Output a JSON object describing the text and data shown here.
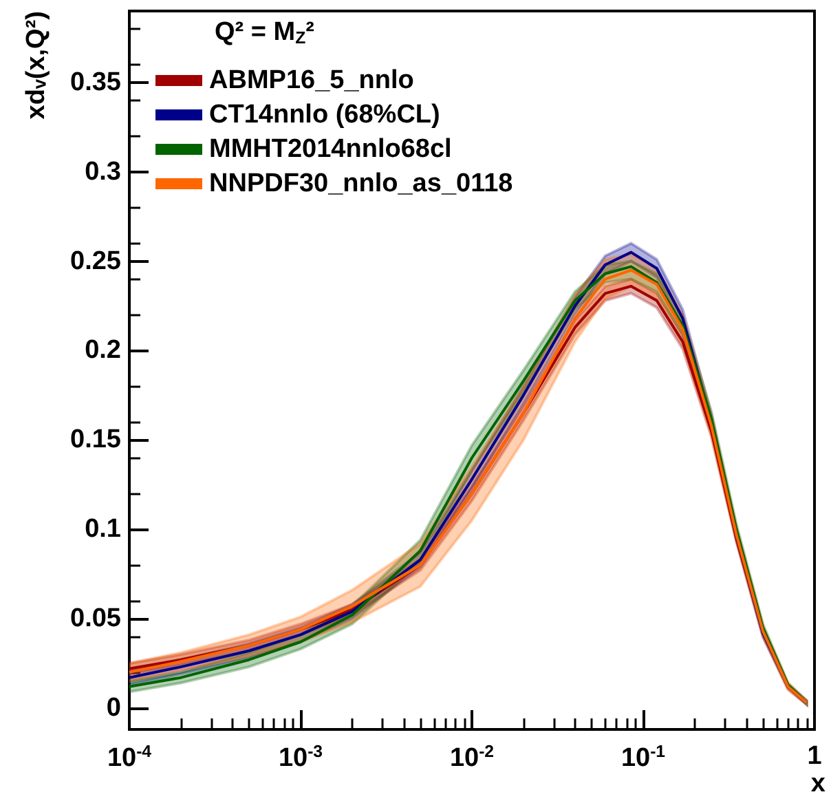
{
  "chart_data": {
    "type": "line",
    "xlabel": "x",
    "ylabel": "xdᵥ(x,Q²)",
    "legend_title": "Q² = M$_{Z}$²",
    "log": "x",
    "xlim": [
      0.0001,
      1
    ],
    "xticks": [
      {
        "value": 0.0001,
        "label": "10$^{-4}$"
      },
      {
        "value": 0.001,
        "label": "10$^{-3}$"
      },
      {
        "value": 0.01,
        "label": "10$^{-2}$"
      },
      {
        "value": 0.1,
        "label": "10$^{-1}$"
      },
      1
    ],
    "ylim": [
      -0.012,
      0.39
    ],
    "yticks": [
      0,
      0.05,
      0.1,
      0.15,
      0.2,
      0.25,
      0.3,
      0.35
    ],
    "grid": false,
    "legend": "top left",
    "marker": "none",
    "line_style": "solid",
    "x": [
      0.0001,
      0.0002,
      0.0005,
      0.001,
      0.002,
      0.005,
      0.01,
      0.02,
      0.04,
      0.06,
      0.085,
      0.12,
      0.17,
      0.25,
      0.35,
      0.5,
      0.7,
      0.9
    ],
    "series": [
      {
        "name": "ABMP16_5_nnlo",
        "color": "#a00000",
        "values": [
          0.022,
          0.027,
          0.035,
          0.044,
          0.055,
          0.08,
          0.12,
          0.165,
          0.213,
          0.232,
          0.236,
          0.228,
          0.205,
          0.155,
          0.095,
          0.042,
          0.012,
          0.003
        ],
        "lower": [
          0.019,
          0.024,
          0.032,
          0.041,
          0.052,
          0.077,
          0.116,
          0.161,
          0.209,
          0.228,
          0.232,
          0.224,
          0.201,
          0.152,
          0.093,
          0.04,
          0.011,
          0.002
        ],
        "upper": [
          0.025,
          0.03,
          0.038,
          0.047,
          0.058,
          0.083,
          0.124,
          0.169,
          0.217,
          0.236,
          0.24,
          0.232,
          0.209,
          0.158,
          0.097,
          0.044,
          0.013,
          0.004
        ]
      },
      {
        "name": "CT14nnlo (68%CL)",
        "color": "#00008b",
        "values": [
          0.017,
          0.023,
          0.032,
          0.041,
          0.054,
          0.083,
          0.128,
          0.175,
          0.225,
          0.248,
          0.255,
          0.246,
          0.218,
          0.16,
          0.097,
          0.042,
          0.012,
          0.003
        ],
        "lower": [
          0.013,
          0.019,
          0.028,
          0.037,
          0.05,
          0.079,
          0.123,
          0.17,
          0.22,
          0.243,
          0.25,
          0.241,
          0.213,
          0.156,
          0.094,
          0.04,
          0.011,
          0.002
        ],
        "upper": [
          0.021,
          0.027,
          0.036,
          0.045,
          0.058,
          0.087,
          0.133,
          0.18,
          0.23,
          0.253,
          0.26,
          0.251,
          0.223,
          0.164,
          0.1,
          0.044,
          0.013,
          0.004
        ]
      },
      {
        "name": "MMHT2014nnlo68cl",
        "color": "#006400",
        "values": [
          0.012,
          0.017,
          0.027,
          0.037,
          0.052,
          0.088,
          0.14,
          0.183,
          0.228,
          0.243,
          0.247,
          0.238,
          0.214,
          0.162,
          0.1,
          0.045,
          0.013,
          0.003
        ],
        "lower": [
          0.009,
          0.014,
          0.023,
          0.033,
          0.047,
          0.082,
          0.133,
          0.177,
          0.223,
          0.238,
          0.24,
          0.233,
          0.209,
          0.158,
          0.097,
          0.043,
          0.012,
          0.002
        ],
        "upper": [
          0.015,
          0.02,
          0.031,
          0.041,
          0.057,
          0.094,
          0.147,
          0.189,
          0.233,
          0.248,
          0.25,
          0.243,
          0.219,
          0.166,
          0.103,
          0.047,
          0.014,
          0.004
        ]
      },
      {
        "name": "NNPDF30_nnlo_as_0118",
        "color": "#ff6600",
        "values": [
          0.02,
          0.026,
          0.035,
          0.044,
          0.057,
          0.08,
          0.12,
          0.165,
          0.218,
          0.24,
          0.245,
          0.237,
          0.212,
          0.158,
          0.097,
          0.043,
          0.012,
          0.003
        ],
        "lower": [
          0.015,
          0.021,
          0.029,
          0.037,
          0.048,
          0.068,
          0.105,
          0.15,
          0.205,
          0.229,
          0.236,
          0.228,
          0.204,
          0.152,
          0.093,
          0.04,
          0.01,
          0.002
        ],
        "upper": [
          0.025,
          0.031,
          0.041,
          0.051,
          0.066,
          0.092,
          0.135,
          0.18,
          0.231,
          0.251,
          0.254,
          0.246,
          0.22,
          0.164,
          0.101,
          0.046,
          0.014,
          0.004
        ]
      }
    ]
  }
}
